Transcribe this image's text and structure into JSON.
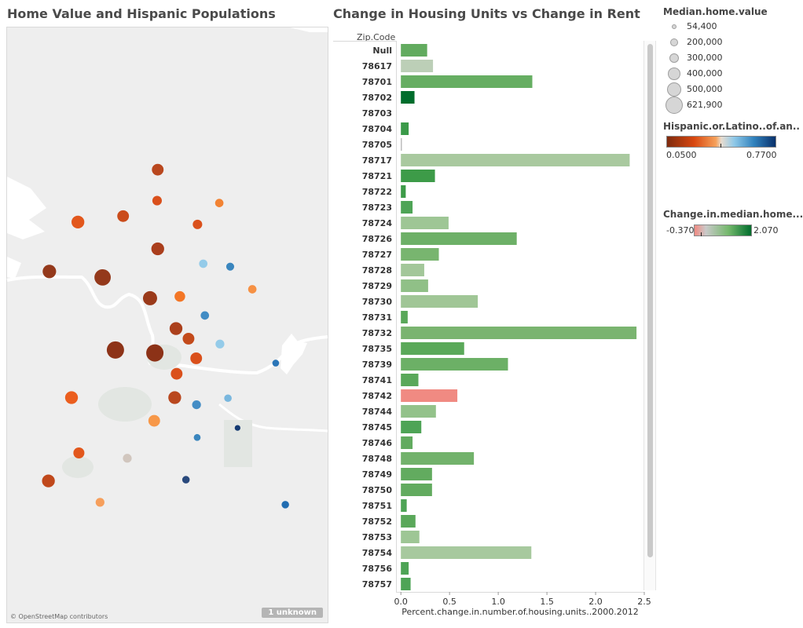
{
  "map": {
    "title": "Home Value and Hispanic Populations",
    "credit": "© OpenStreetMap contributors",
    "unknown_badge": "1 unknown"
  },
  "bar_panel": {
    "title": "Change in Housing Units vs Change in Rent",
    "zip_header": "Zip.Code",
    "x_axis_label": "Percent.change.in.number.of.housing.units..2000.2012"
  },
  "legends": {
    "size": {
      "title": "Median.home.value",
      "entries": [
        "54,400",
        "200,000",
        "300,000",
        "400,000",
        "500,000",
        "621,900"
      ],
      "values": [
        54400,
        200000,
        300000,
        400000,
        500000,
        621900
      ]
    },
    "hispanic": {
      "title": "Hispanic.or.Latino..of.an..",
      "min_label": "0.0500",
      "max_label": "0.7700"
    },
    "rent": {
      "title": "Change.in.median.home...",
      "min_label": "-0.370",
      "max_label": "2.070"
    }
  },
  "chart_data": [
    {
      "type": "bar",
      "orientation": "horizontal",
      "title": "Change in Housing Units vs Change in Rent",
      "xlabel": "Percent.change.in.number.of.housing.units..2000.2012",
      "ylabel": "Zip.Code",
      "xlim": [
        -0.05,
        2.5
      ],
      "x_ticks": [
        "0.0",
        "0.5",
        "1.0",
        "1.5",
        "2.0",
        "2.5"
      ],
      "categories": [
        "Null",
        "78617",
        "78701",
        "78702",
        "78703",
        "78704",
        "78705",
        "78717",
        "78721",
        "78722",
        "78723",
        "78724",
        "78726",
        "78727",
        "78728",
        "78729",
        "78730",
        "78731",
        "78732",
        "78735",
        "78739",
        "78741",
        "78742",
        "78744",
        "78745",
        "78746",
        "78748",
        "78749",
        "78750",
        "78751",
        "78752",
        "78753",
        "78754",
        "78756",
        "78757"
      ],
      "values": [
        0.27,
        0.33,
        1.35,
        0.14,
        0.0,
        0.08,
        0.01,
        2.35,
        0.35,
        0.05,
        0.12,
        0.49,
        1.19,
        0.39,
        0.24,
        0.28,
        0.79,
        0.07,
        2.42,
        0.65,
        1.1,
        0.18,
        0.58,
        0.36,
        0.21,
        0.12,
        0.75,
        0.32,
        0.32,
        0.06,
        0.15,
        0.19,
        1.34,
        0.08,
        0.1
      ],
      "color_colors": [
        "#62ab5f",
        "#bccfb7",
        "#66ae62",
        "#006d2c",
        "#ffffff",
        "#3b9a49",
        "#b0b0b0",
        "#a9c99f",
        "#3d9b48",
        "#3d9b48",
        "#4ea456",
        "#9ec695",
        "#6db067",
        "#78b56f",
        "#a3c79a",
        "#90c087",
        "#a0c696",
        "#5aa85a",
        "#7ab470",
        "#5ba95a",
        "#6cb066",
        "#5aa85a",
        "#f08a82",
        "#93c28a",
        "#4ea456",
        "#62ab5f",
        "#72b26b",
        "#62ab5f",
        "#62ab5f",
        "#4ea456",
        "#5aa85a",
        "#9ec695",
        "#a7c99e",
        "#4ea456",
        "#4ea456"
      ]
    },
    {
      "type": "scatter",
      "title": "Home Value and Hispanic Populations",
      "xlabel": "",
      "ylabel": "",
      "points": [
        {
          "x": 0.47,
          "y": 0.239,
          "color": "#b53d12",
          "size": 370000
        },
        {
          "x": 0.468,
          "y": 0.291,
          "color": "#d8470f",
          "size": 270000
        },
        {
          "x": 0.662,
          "y": 0.295,
          "color": "#f17c28",
          "size": 220000
        },
        {
          "x": 0.221,
          "y": 0.327,
          "color": "#e04e10",
          "size": 420000
        },
        {
          "x": 0.362,
          "y": 0.317,
          "color": "#c7420f",
          "size": 370000
        },
        {
          "x": 0.594,
          "y": 0.331,
          "color": "#d8470f",
          "size": 270000
        },
        {
          "x": 0.47,
          "y": 0.372,
          "color": "#a53410",
          "size": 420000
        },
        {
          "x": 0.612,
          "y": 0.397,
          "color": "#8ec8e8",
          "size": 220000
        },
        {
          "x": 0.696,
          "y": 0.402,
          "color": "#2f7fbb",
          "size": 200000
        },
        {
          "x": 0.132,
          "y": 0.41,
          "color": "#8e2e0f",
          "size": 450000
        },
        {
          "x": 0.298,
          "y": 0.42,
          "color": "#8e2e0f",
          "size": 580000
        },
        {
          "x": 0.765,
          "y": 0.44,
          "color": "#f58b3a",
          "size": 220000
        },
        {
          "x": 0.446,
          "y": 0.455,
          "color": "#952f0e",
          "size": 480000
        },
        {
          "x": 0.539,
          "y": 0.452,
          "color": "#f26f1a",
          "size": 320000
        },
        {
          "x": 0.617,
          "y": 0.484,
          "color": "#3786c1",
          "size": 220000
        },
        {
          "x": 0.527,
          "y": 0.506,
          "color": "#a63610",
          "size": 420000
        },
        {
          "x": 0.566,
          "y": 0.523,
          "color": "#c0400f",
          "size": 370000
        },
        {
          "x": 0.664,
          "y": 0.532,
          "color": "#8ec8e8",
          "size": 240000
        },
        {
          "x": 0.338,
          "y": 0.542,
          "color": "#87280c",
          "size": 621900
        },
        {
          "x": 0.461,
          "y": 0.547,
          "color": "#87280c",
          "size": 621900
        },
        {
          "x": 0.59,
          "y": 0.556,
          "color": "#d8470f",
          "size": 370000
        },
        {
          "x": 0.529,
          "y": 0.582,
          "color": "#d8470f",
          "size": 370000
        },
        {
          "x": 0.838,
          "y": 0.564,
          "color": "#1f6eb3",
          "size": 150000
        },
        {
          "x": 0.523,
          "y": 0.622,
          "color": "#b53d12",
          "size": 420000
        },
        {
          "x": 0.591,
          "y": 0.634,
          "color": "#3a87c2",
          "size": 240000
        },
        {
          "x": 0.689,
          "y": 0.623,
          "color": "#72b3dc",
          "size": 180000
        },
        {
          "x": 0.201,
          "y": 0.622,
          "color": "#ea5512",
          "size": 420000
        },
        {
          "x": 0.459,
          "y": 0.661,
          "color": "#f7923f",
          "size": 370000
        },
        {
          "x": 0.719,
          "y": 0.673,
          "color": "#08306b",
          "size": 100000
        },
        {
          "x": 0.593,
          "y": 0.689,
          "color": "#2f7fbb",
          "size": 150000
        },
        {
          "x": 0.224,
          "y": 0.715,
          "color": "#e04e10",
          "size": 340000
        },
        {
          "x": 0.375,
          "y": 0.724,
          "color": "#cfc3bb",
          "size": 240000
        },
        {
          "x": 0.558,
          "y": 0.76,
          "color": "#1e3f75",
          "size": 180000
        },
        {
          "x": 0.129,
          "y": 0.762,
          "color": "#bd3e0f",
          "size": 420000
        },
        {
          "x": 0.29,
          "y": 0.798,
          "color": "#f59a53",
          "size": 240000
        },
        {
          "x": 0.868,
          "y": 0.802,
          "color": "#1565ad",
          "size": 180000
        }
      ]
    }
  ]
}
